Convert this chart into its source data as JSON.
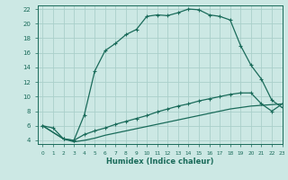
{
  "xlabel": "Humidex (Indice chaleur)",
  "background_color": "#cce8e4",
  "line_color": "#1a6b5a",
  "grid_color": "#aacfca",
  "xlim": [
    -0.5,
    23
  ],
  "ylim": [
    3.5,
    22.5
  ],
  "xticks": [
    0,
    1,
    2,
    3,
    4,
    5,
    6,
    7,
    8,
    9,
    10,
    11,
    12,
    13,
    14,
    15,
    16,
    17,
    18,
    19,
    20,
    21,
    22,
    23
  ],
  "yticks": [
    4,
    6,
    8,
    10,
    12,
    14,
    16,
    18,
    20,
    22
  ],
  "curve1_x": [
    0,
    1,
    2,
    3,
    4,
    5,
    6,
    7,
    8,
    9,
    10,
    11,
    12,
    13,
    14,
    15,
    16,
    17,
    18,
    19,
    20,
    21,
    22,
    23
  ],
  "curve1_y": [
    6.0,
    5.7,
    4.2,
    4.0,
    7.5,
    13.5,
    16.3,
    17.3,
    18.5,
    19.2,
    21.0,
    21.2,
    21.1,
    21.5,
    22.0,
    21.9,
    21.2,
    21.0,
    20.5,
    17.0,
    14.3,
    12.4,
    9.5,
    8.5
  ],
  "curve2_x": [
    0,
    2,
    3,
    4,
    5,
    6,
    7,
    8,
    9,
    10,
    11,
    12,
    13,
    14,
    15,
    16,
    17,
    18,
    19,
    20,
    21,
    22,
    23
  ],
  "curve2_y": [
    6.0,
    4.2,
    4.0,
    4.8,
    5.3,
    5.7,
    6.2,
    6.6,
    7.0,
    7.4,
    7.9,
    8.3,
    8.7,
    9.0,
    9.4,
    9.7,
    10.0,
    10.3,
    10.5,
    10.5,
    9.0,
    8.0,
    9.0
  ],
  "curve3_x": [
    0,
    2,
    3,
    4,
    5,
    6,
    7,
    8,
    9,
    10,
    11,
    12,
    13,
    14,
    15,
    16,
    17,
    18,
    19,
    20,
    21,
    22,
    23
  ],
  "curve3_y": [
    6.0,
    4.2,
    3.8,
    4.0,
    4.3,
    4.7,
    5.0,
    5.3,
    5.6,
    5.9,
    6.2,
    6.5,
    6.8,
    7.1,
    7.4,
    7.7,
    8.0,
    8.3,
    8.5,
    8.7,
    8.8,
    8.9,
    9.0
  ]
}
